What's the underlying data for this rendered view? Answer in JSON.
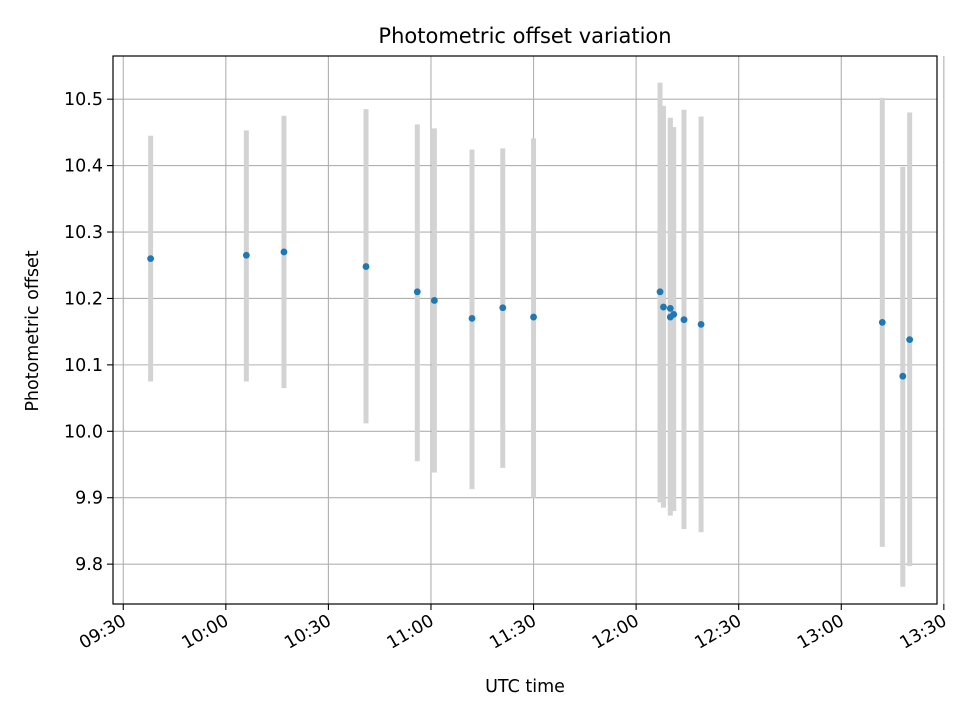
{
  "chart_data": {
    "type": "scatter",
    "title": "Photometric offset variation",
    "xlabel": "UTC time",
    "ylabel": "Photometric offset",
    "x_tick_labels": [
      "09:30",
      "10:00",
      "10:30",
      "11:00",
      "11:30",
      "12:00",
      "12:30",
      "13:00",
      "13:30"
    ],
    "y_tick_values": [
      9.8,
      9.9,
      10.0,
      10.1,
      10.2,
      10.3,
      10.4,
      10.5
    ],
    "y_tick_labels": [
      "9.8",
      "9.9",
      "10.0",
      "10.1",
      "10.2",
      "10.3",
      "10.4",
      "10.5"
    ],
    "xlim": [
      "09:27",
      "13:28"
    ],
    "ylim": [
      9.74,
      10.565
    ],
    "grid": true,
    "point_color": "#1f77b4",
    "errorbar_color": "#d3d3d3",
    "points": [
      {
        "x": "09:38",
        "y": 10.26,
        "ylow": 10.075,
        "yhigh": 10.445
      },
      {
        "x": "10:06",
        "y": 10.265,
        "ylow": 10.075,
        "yhigh": 10.453
      },
      {
        "x": "10:17",
        "y": 10.27,
        "ylow": 10.065,
        "yhigh": 10.475
      },
      {
        "x": "10:41",
        "y": 10.248,
        "ylow": 10.012,
        "yhigh": 10.485
      },
      {
        "x": "10:56",
        "y": 10.21,
        "ylow": 9.955,
        "yhigh": 10.462
      },
      {
        "x": "11:01",
        "y": 10.197,
        "ylow": 9.938,
        "yhigh": 10.456
      },
      {
        "x": "11:12",
        "y": 10.17,
        "ylow": 9.913,
        "yhigh": 10.424
      },
      {
        "x": "11:21",
        "y": 10.186,
        "ylow": 9.945,
        "yhigh": 10.426
      },
      {
        "x": "11:30",
        "y": 10.172,
        "ylow": 9.9,
        "yhigh": 10.441
      },
      {
        "x": "12:07",
        "y": 10.21,
        "ylow": 9.893,
        "yhigh": 10.525
      },
      {
        "x": "12:08",
        "y": 10.187,
        "ylow": 9.885,
        "yhigh": 10.49
      },
      {
        "x": "12:10",
        "y": 10.185,
        "ylow": 9.889,
        "yhigh": 10.472
      },
      {
        "x": "12:10",
        "y": 10.172,
        "ylow": 9.873,
        "yhigh": 10.47
      },
      {
        "x": "12:11",
        "y": 10.176,
        "ylow": 9.88,
        "yhigh": 10.458
      },
      {
        "x": "12:14",
        "y": 10.168,
        "ylow": 9.853,
        "yhigh": 10.484
      },
      {
        "x": "12:19",
        "y": 10.161,
        "ylow": 9.848,
        "yhigh": 10.474
      },
      {
        "x": "13:12",
        "y": 10.164,
        "ylow": 9.826,
        "yhigh": 10.502
      },
      {
        "x": "13:18",
        "y": 10.083,
        "ylow": 9.766,
        "yhigh": 10.398
      },
      {
        "x": "13:20",
        "y": 10.138,
        "ylow": 9.797,
        "yhigh": 10.48
      }
    ]
  }
}
